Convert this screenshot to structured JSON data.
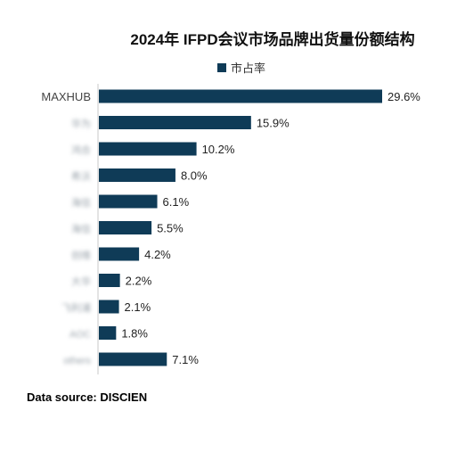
{
  "chart_data": {
    "type": "bar",
    "orientation": "horizontal",
    "title": "2024年 IFPD会议市场品牌出货量份额结构",
    "series": [
      {
        "name": "市占率",
        "color": "#0f3b57",
        "values": [
          29.6,
          15.9,
          10.2,
          8.0,
          6.1,
          5.5,
          4.2,
          2.2,
          2.1,
          1.8,
          7.1
        ],
        "labels": [
          "29.6%",
          "15.9%",
          "10.2%",
          "8.0%",
          "6.1%",
          "5.5%",
          "4.2%",
          "2.2%",
          "2.1%",
          "1.8%",
          "7.1%"
        ]
      }
    ],
    "categories": [
      "MAXHUB",
      "华为",
      "鸿合",
      "希沃",
      "海信",
      "海信",
      "创维",
      "大华",
      "飞利浦",
      "AOC",
      "others"
    ],
    "blurred_categories": [
      false,
      true,
      true,
      true,
      true,
      true,
      true,
      true,
      true,
      true,
      true
    ],
    "xlim": [
      0,
      29.6
    ],
    "grid": false,
    "legend_position": "top-center"
  },
  "footer": {
    "source": "Data source: DISCIEN"
  }
}
